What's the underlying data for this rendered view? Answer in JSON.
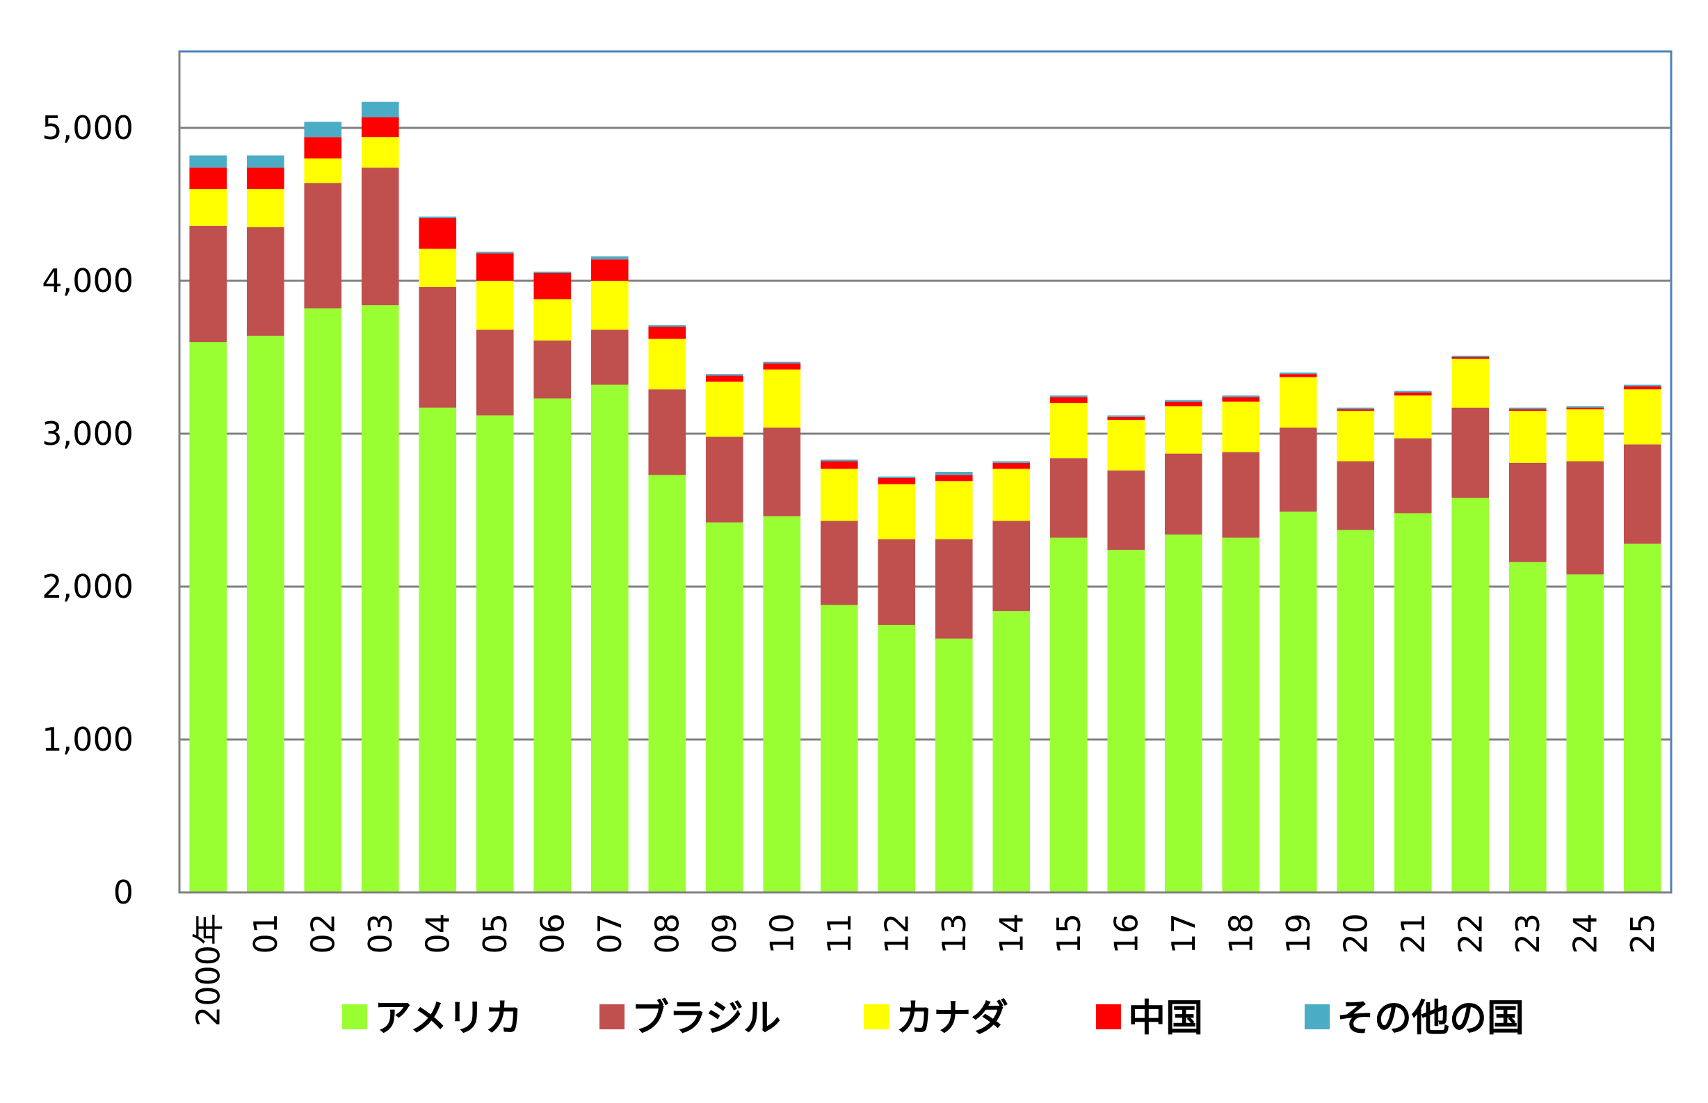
{
  "chart_data": {
    "type": "bar",
    "stacked": true,
    "categories": [
      "2000年",
      "01",
      "02",
      "03",
      "04",
      "05",
      "06",
      "07",
      "08",
      "09",
      "10",
      "11",
      "12",
      "13",
      "14",
      "15",
      "16",
      "17",
      "18",
      "19",
      "20",
      "21",
      "22",
      "23",
      "24",
      "25"
    ],
    "series": [
      {
        "name": "アメリカ",
        "color": "#99ff33",
        "values": [
          3600,
          3640,
          3820,
          3840,
          3170,
          3120,
          3230,
          3320,
          2730,
          2420,
          2460,
          1880,
          1750,
          1660,
          1840,
          2320,
          2240,
          2340,
          2320,
          2490,
          2370,
          2480,
          2580,
          2160,
          2080,
          2280
        ]
      },
      {
        "name": "ブラジル",
        "color": "#c0504d",
        "values": [
          760,
          710,
          820,
          900,
          790,
          560,
          380,
          360,
          560,
          560,
          580,
          550,
          560,
          650,
          590,
          520,
          520,
          530,
          560,
          550,
          450,
          490,
          590,
          650,
          740,
          650
        ]
      },
      {
        "name": "カナダ",
        "color": "#ffff00",
        "values": [
          240,
          250,
          160,
          200,
          250,
          320,
          270,
          320,
          330,
          360,
          380,
          340,
          360,
          380,
          340,
          360,
          330,
          310,
          330,
          330,
          330,
          280,
          320,
          340,
          340,
          360
        ]
      },
      {
        "name": "中国",
        "color": "#ff0000",
        "values": [
          140,
          140,
          140,
          130,
          200,
          180,
          170,
          140,
          80,
          40,
          40,
          50,
          40,
          40,
          40,
          40,
          20,
          30,
          30,
          20,
          10,
          20,
          10,
          10,
          10,
          20
        ]
      },
      {
        "name": "その他の国",
        "color": "#4bacc6",
        "values": [
          80,
          80,
          100,
          100,
          10,
          10,
          10,
          20,
          10,
          10,
          10,
          10,
          10,
          20,
          10,
          10,
          10,
          10,
          10,
          10,
          10,
          10,
          10,
          10,
          10,
          10
        ]
      }
    ],
    "yticks": [
      "0",
      "1,000",
      "2,000",
      "3,000",
      "4,000",
      "5,000"
    ],
    "ylim": [
      0,
      5500
    ],
    "grid": true,
    "legend": "bottom"
  }
}
